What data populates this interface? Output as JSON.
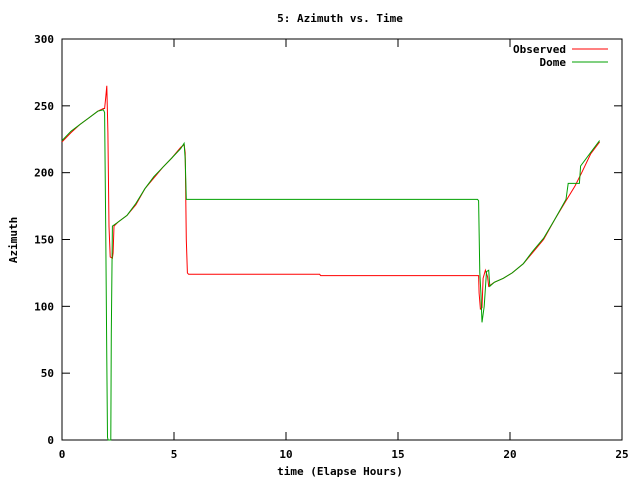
{
  "chart_data": {
    "type": "line",
    "title": "5: Azimuth vs. Time",
    "xlabel": "time (Elapse Hours)",
    "ylabel": "Azimuth",
    "xlim": [
      0,
      25
    ],
    "ylim": [
      0,
      300
    ],
    "xticks": [
      0,
      5,
      10,
      15,
      20,
      25
    ],
    "yticks": [
      0,
      50,
      100,
      150,
      200,
      250,
      300
    ],
    "grid": false,
    "legend_position": "top-right",
    "series": [
      {
        "name": "Observed",
        "color": "#ff0000",
        "points": [
          [
            0,
            223
          ],
          [
            0.4,
            230
          ],
          [
            0.8,
            236
          ],
          [
            1.2,
            241
          ],
          [
            1.6,
            246
          ],
          [
            1.85,
            248
          ],
          [
            1.9,
            248
          ],
          [
            1.95,
            256
          ],
          [
            2.0,
            265
          ],
          [
            2.05,
            230
          ],
          [
            2.1,
            160
          ],
          [
            2.15,
            137
          ],
          [
            2.25,
            136
          ],
          [
            2.28,
            140
          ],
          [
            2.32,
            160
          ],
          [
            2.5,
            163
          ],
          [
            2.9,
            168
          ],
          [
            3.3,
            176
          ],
          [
            3.7,
            188
          ],
          [
            4.1,
            196
          ],
          [
            4.5,
            204
          ],
          [
            4.9,
            211
          ],
          [
            5.3,
            219
          ],
          [
            5.45,
            221
          ],
          [
            5.5,
            215
          ],
          [
            5.55,
            150
          ],
          [
            5.6,
            125
          ],
          [
            5.65,
            124
          ],
          [
            8,
            124
          ],
          [
            11.5,
            124
          ],
          [
            11.55,
            123
          ],
          [
            15,
            123
          ],
          [
            18.6,
            123
          ],
          [
            18.62,
            110
          ],
          [
            18.68,
            98
          ],
          [
            18.75,
            99
          ],
          [
            18.8,
            121
          ],
          [
            18.9,
            127
          ],
          [
            19.0,
            122
          ],
          [
            19.05,
            115
          ],
          [
            19.3,
            118
          ],
          [
            19.7,
            121
          ],
          [
            20.1,
            125
          ],
          [
            20.6,
            132
          ],
          [
            21,
            140
          ],
          [
            21.5,
            150
          ],
          [
            22,
            165
          ],
          [
            22.5,
            179
          ],
          [
            22.9,
            190
          ],
          [
            23.2,
            200
          ],
          [
            23.6,
            214
          ],
          [
            24,
            223
          ]
        ]
      },
      {
        "name": "Dome",
        "color": "#00a000",
        "points": [
          [
            0,
            224
          ],
          [
            0.4,
            231
          ],
          [
            0.8,
            236
          ],
          [
            1.2,
            241
          ],
          [
            1.6,
            246
          ],
          [
            1.85,
            247
          ],
          [
            1.9,
            245
          ],
          [
            1.95,
            160
          ],
          [
            2.0,
            60
          ],
          [
            2.03,
            2
          ],
          [
            2.06,
            0
          ],
          [
            2.15,
            0
          ],
          [
            2.18,
            0
          ],
          [
            2.2,
            80
          ],
          [
            2.25,
            160
          ],
          [
            2.5,
            163
          ],
          [
            2.9,
            168
          ],
          [
            3.3,
            177
          ],
          [
            3.7,
            188
          ],
          [
            4.1,
            197
          ],
          [
            4.5,
            204
          ],
          [
            4.9,
            211
          ],
          [
            5.3,
            218
          ],
          [
            5.45,
            222
          ],
          [
            5.5,
            210
          ],
          [
            5.55,
            180
          ],
          [
            5.6,
            180
          ],
          [
            10,
            180
          ],
          [
            15,
            180
          ],
          [
            18.55,
            180
          ],
          [
            18.6,
            179
          ],
          [
            18.65,
            125
          ],
          [
            18.7,
            110
          ],
          [
            18.75,
            88
          ],
          [
            18.85,
            100
          ],
          [
            18.95,
            126
          ],
          [
            19.05,
            127
          ],
          [
            19.1,
            115
          ],
          [
            19.3,
            118
          ],
          [
            19.7,
            121
          ],
          [
            20.1,
            125
          ],
          [
            20.6,
            132
          ],
          [
            21,
            141
          ],
          [
            21.5,
            151
          ],
          [
            22,
            165
          ],
          [
            22.5,
            180
          ],
          [
            22.6,
            192
          ],
          [
            23.1,
            192
          ],
          [
            23.15,
            205
          ],
          [
            23.6,
            215
          ],
          [
            24,
            224
          ]
        ]
      }
    ]
  }
}
